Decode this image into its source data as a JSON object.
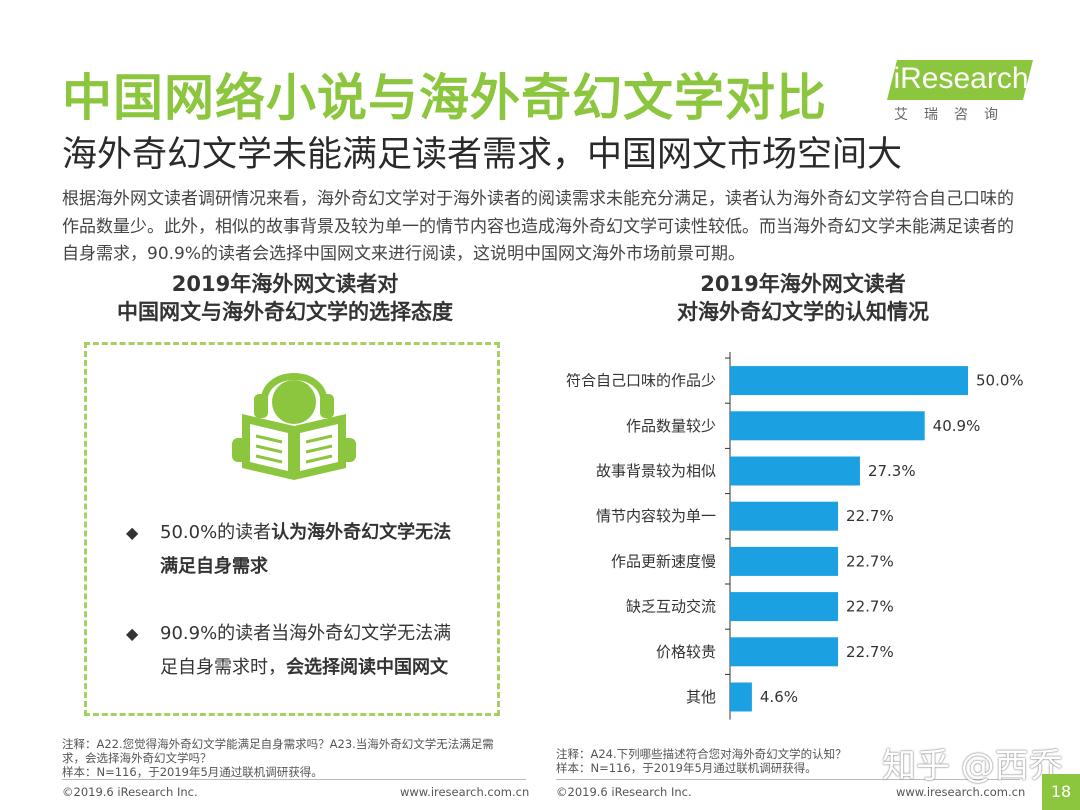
{
  "header": {
    "title": "中国网络小说与海外奇幻文学对比",
    "subtitle": "海外奇幻文学未能满足读者需求，中国网文市场空间大",
    "intro": "根据海外网文读者调研情况来看，海外奇幻文学对于海外读者的阅读需求未能充分满足，读者认为海外奇幻文学符合自己口味的作品数量少。此外，相似的故事背景及较为单一的情节内容也造成海外奇幻文学可读性较低。而当海外奇幻文学未能满足读者的自身需求，90.9%的读者会选择中国网文来进行阅读，这说明中国网文海外市场前景可期。"
  },
  "logo": {
    "text": "iResearch",
    "sub": "艾瑞咨询",
    "color": "#8cc63e"
  },
  "left_panel": {
    "heading_line1": "2019年海外网文读者对",
    "heading_line2": "中国网文与海外奇幻文学的选择态度",
    "icon": "reader-with-headphones-icon",
    "bullet1_plain": "50.0%的读者",
    "bullet1_bold": "认为海外奇幻文学无法满足自身需求",
    "bullet2_plain": "90.9%的读者当海外奇幻文学无法满足自身需求时，",
    "bullet2_bold": "会选择阅读中国网文"
  },
  "right_panel": {
    "heading_line1": "2019年海外网文读者",
    "heading_line2": "对海外奇幻文学的认知情况"
  },
  "chart_data": {
    "type": "bar",
    "orientation": "horizontal",
    "categories": [
      "符合自己口味的作品少",
      "作品数量较少",
      "故事背景较为相似",
      "情节内容较为单一",
      "作品更新速度慢",
      "缺乏互动交流",
      "价格较贵",
      "其他"
    ],
    "values": [
      50.0,
      40.9,
      27.3,
      22.7,
      22.7,
      22.7,
      22.7,
      4.6
    ],
    "value_labels": [
      "50.0%",
      "40.9%",
      "27.3%",
      "22.7%",
      "22.7%",
      "22.7%",
      "22.7%",
      "4.6%"
    ],
    "xlim": [
      0,
      50
    ],
    "grid": false,
    "bar_color": "#1ba1e2"
  },
  "notes": {
    "left_line1": "注释：A22.您觉得海外奇幻文学能满足自身需求吗？A23.当海外奇幻文学无法满足需",
    "left_line2": "求，会选择海外奇幻文学吗？",
    "left_line3": "样本：N=116，于2019年5月通过联机调研获得。",
    "right_line1": "注释：A24.下列哪些描述符合您对海外奇幻文学的认知？",
    "right_line2": "样本：N=116，于2019年5月通过联机调研获得。"
  },
  "footer": {
    "copyright_left": "©2019.6 iResearch Inc.",
    "url_left": "www.iresearch.com.cn",
    "copyright_right": "©2019.6 iResearch Inc.",
    "url_right": "www.iresearch.com.cn",
    "page_number": "18"
  },
  "watermark": "知乎 @西乔"
}
